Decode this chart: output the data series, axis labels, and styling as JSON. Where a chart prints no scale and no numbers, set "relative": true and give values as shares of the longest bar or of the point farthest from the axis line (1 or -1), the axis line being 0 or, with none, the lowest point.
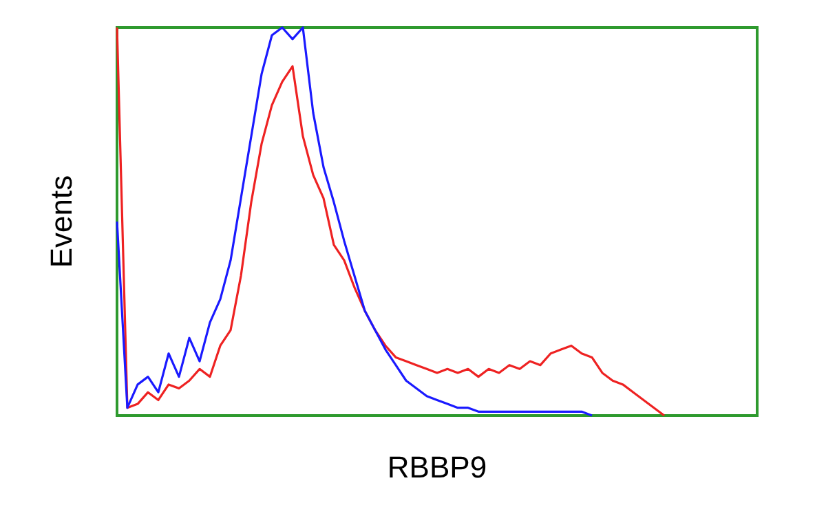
{
  "chart_data": {
    "type": "line",
    "relative": true,
    "xlabel": "RBBP9",
    "ylabel": "Events",
    "grid": false,
    "marker": "none",
    "line_style": "solid",
    "categories": [
      null,
      null,
      null,
      null,
      null,
      null,
      null,
      null,
      null,
      null,
      null,
      null,
      null,
      null,
      null,
      null,
      null,
      null,
      null,
      null,
      null,
      null,
      null,
      null,
      null,
      null,
      null,
      null,
      null,
      null,
      null,
      null,
      null,
      null,
      null,
      null,
      null,
      null,
      null,
      null,
      null,
      null,
      null,
      null,
      null,
      null,
      null,
      null,
      null,
      null,
      null,
      null,
      null,
      null,
      null,
      null,
      null,
      null,
      null,
      null,
      null,
      null,
      null
    ],
    "series": [
      {
        "color": "#ee2222",
        "values": [
          1.0,
          0.02,
          0.03,
          0.06,
          0.04,
          0.08,
          0.07,
          0.09,
          0.12,
          0.1,
          0.18,
          0.22,
          0.36,
          0.55,
          0.7,
          0.8,
          0.86,
          0.9,
          0.72,
          0.62,
          0.56,
          0.44,
          0.4,
          0.33,
          0.27,
          0.22,
          0.18,
          0.15,
          0.14,
          0.13,
          0.12,
          0.11,
          0.12,
          0.11,
          0.12,
          0.1,
          0.12,
          0.11,
          0.13,
          0.12,
          0.14,
          0.13,
          0.16,
          0.17,
          0.18,
          0.16,
          0.15,
          0.11,
          0.09,
          0.08,
          0.06,
          0.04,
          0.02,
          0.0,
          null,
          null,
          null,
          null,
          null,
          null,
          null,
          null,
          null
        ]
      },
      {
        "color": "#1a1aff",
        "values": [
          0.5,
          0.02,
          0.08,
          0.1,
          0.06,
          0.16,
          0.1,
          0.2,
          0.14,
          0.24,
          0.3,
          0.4,
          0.56,
          0.72,
          0.88,
          0.98,
          1.0,
          0.97,
          1.0,
          0.78,
          0.64,
          0.55,
          0.45,
          0.36,
          0.27,
          0.22,
          0.17,
          0.13,
          0.09,
          0.07,
          0.05,
          0.04,
          0.03,
          0.02,
          0.02,
          0.01,
          0.01,
          0.01,
          0.01,
          0.01,
          0.01,
          0.01,
          0.01,
          0.01,
          0.01,
          0.01,
          0.0,
          null,
          null,
          null,
          null,
          null,
          null,
          null,
          null,
          null,
          null,
          null,
          null,
          null,
          null,
          null,
          null
        ]
      }
    ]
  }
}
